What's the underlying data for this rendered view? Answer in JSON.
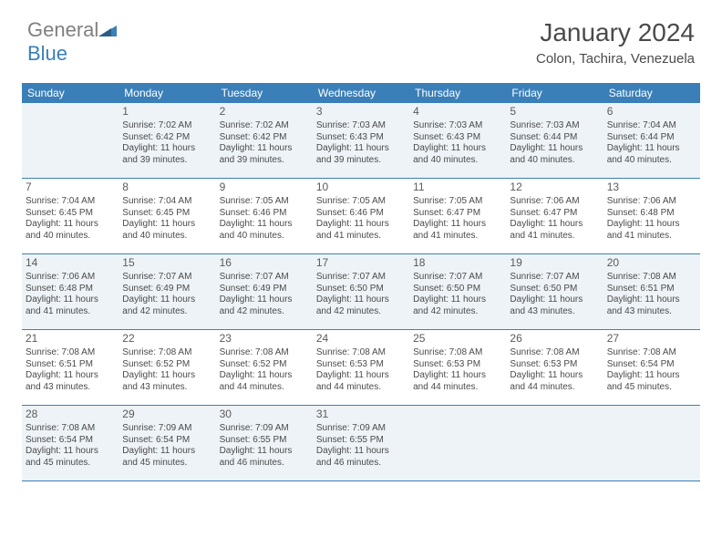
{
  "brand": {
    "part1": "General",
    "part2": "Blue"
  },
  "header": {
    "title": "January 2024",
    "location": "Colon, Tachira, Venezuela"
  },
  "colors": {
    "accent": "#3b7fb8",
    "header_text": "#ffffff",
    "body_text": "#4a4a4a",
    "shaded_bg": "#eef3f7",
    "logo_gray": "#808080"
  },
  "weekdays": [
    "Sunday",
    "Monday",
    "Tuesday",
    "Wednesday",
    "Thursday",
    "Friday",
    "Saturday"
  ],
  "weeks": [
    [
      {
        "n": "",
        "sr": "",
        "ss": "",
        "dl": ""
      },
      {
        "n": "1",
        "sr": "7:02 AM",
        "ss": "6:42 PM",
        "dl": "11 hours and 39 minutes."
      },
      {
        "n": "2",
        "sr": "7:02 AM",
        "ss": "6:42 PM",
        "dl": "11 hours and 39 minutes."
      },
      {
        "n": "3",
        "sr": "7:03 AM",
        "ss": "6:43 PM",
        "dl": "11 hours and 39 minutes."
      },
      {
        "n": "4",
        "sr": "7:03 AM",
        "ss": "6:43 PM",
        "dl": "11 hours and 40 minutes."
      },
      {
        "n": "5",
        "sr": "7:03 AM",
        "ss": "6:44 PM",
        "dl": "11 hours and 40 minutes."
      },
      {
        "n": "6",
        "sr": "7:04 AM",
        "ss": "6:44 PM",
        "dl": "11 hours and 40 minutes."
      }
    ],
    [
      {
        "n": "7",
        "sr": "7:04 AM",
        "ss": "6:45 PM",
        "dl": "11 hours and 40 minutes."
      },
      {
        "n": "8",
        "sr": "7:04 AM",
        "ss": "6:45 PM",
        "dl": "11 hours and 40 minutes."
      },
      {
        "n": "9",
        "sr": "7:05 AM",
        "ss": "6:46 PM",
        "dl": "11 hours and 40 minutes."
      },
      {
        "n": "10",
        "sr": "7:05 AM",
        "ss": "6:46 PM",
        "dl": "11 hours and 41 minutes."
      },
      {
        "n": "11",
        "sr": "7:05 AM",
        "ss": "6:47 PM",
        "dl": "11 hours and 41 minutes."
      },
      {
        "n": "12",
        "sr": "7:06 AM",
        "ss": "6:47 PM",
        "dl": "11 hours and 41 minutes."
      },
      {
        "n": "13",
        "sr": "7:06 AM",
        "ss": "6:48 PM",
        "dl": "11 hours and 41 minutes."
      }
    ],
    [
      {
        "n": "14",
        "sr": "7:06 AM",
        "ss": "6:48 PM",
        "dl": "11 hours and 41 minutes."
      },
      {
        "n": "15",
        "sr": "7:07 AM",
        "ss": "6:49 PM",
        "dl": "11 hours and 42 minutes."
      },
      {
        "n": "16",
        "sr": "7:07 AM",
        "ss": "6:49 PM",
        "dl": "11 hours and 42 minutes."
      },
      {
        "n": "17",
        "sr": "7:07 AM",
        "ss": "6:50 PM",
        "dl": "11 hours and 42 minutes."
      },
      {
        "n": "18",
        "sr": "7:07 AM",
        "ss": "6:50 PM",
        "dl": "11 hours and 42 minutes."
      },
      {
        "n": "19",
        "sr": "7:07 AM",
        "ss": "6:50 PM",
        "dl": "11 hours and 43 minutes."
      },
      {
        "n": "20",
        "sr": "7:08 AM",
        "ss": "6:51 PM",
        "dl": "11 hours and 43 minutes."
      }
    ],
    [
      {
        "n": "21",
        "sr": "7:08 AM",
        "ss": "6:51 PM",
        "dl": "11 hours and 43 minutes."
      },
      {
        "n": "22",
        "sr": "7:08 AM",
        "ss": "6:52 PM",
        "dl": "11 hours and 43 minutes."
      },
      {
        "n": "23",
        "sr": "7:08 AM",
        "ss": "6:52 PM",
        "dl": "11 hours and 44 minutes."
      },
      {
        "n": "24",
        "sr": "7:08 AM",
        "ss": "6:53 PM",
        "dl": "11 hours and 44 minutes."
      },
      {
        "n": "25",
        "sr": "7:08 AM",
        "ss": "6:53 PM",
        "dl": "11 hours and 44 minutes."
      },
      {
        "n": "26",
        "sr": "7:08 AM",
        "ss": "6:53 PM",
        "dl": "11 hours and 44 minutes."
      },
      {
        "n": "27",
        "sr": "7:08 AM",
        "ss": "6:54 PM",
        "dl": "11 hours and 45 minutes."
      }
    ],
    [
      {
        "n": "28",
        "sr": "7:08 AM",
        "ss": "6:54 PM",
        "dl": "11 hours and 45 minutes."
      },
      {
        "n": "29",
        "sr": "7:09 AM",
        "ss": "6:54 PM",
        "dl": "11 hours and 45 minutes."
      },
      {
        "n": "30",
        "sr": "7:09 AM",
        "ss": "6:55 PM",
        "dl": "11 hours and 46 minutes."
      },
      {
        "n": "31",
        "sr": "7:09 AM",
        "ss": "6:55 PM",
        "dl": "11 hours and 46 minutes."
      },
      {
        "n": "",
        "sr": "",
        "ss": "",
        "dl": ""
      },
      {
        "n": "",
        "sr": "",
        "ss": "",
        "dl": ""
      },
      {
        "n": "",
        "sr": "",
        "ss": "",
        "dl": ""
      }
    ]
  ],
  "labels": {
    "sunrise": "Sunrise: ",
    "sunset": "Sunset: ",
    "daylight": "Daylight: "
  }
}
